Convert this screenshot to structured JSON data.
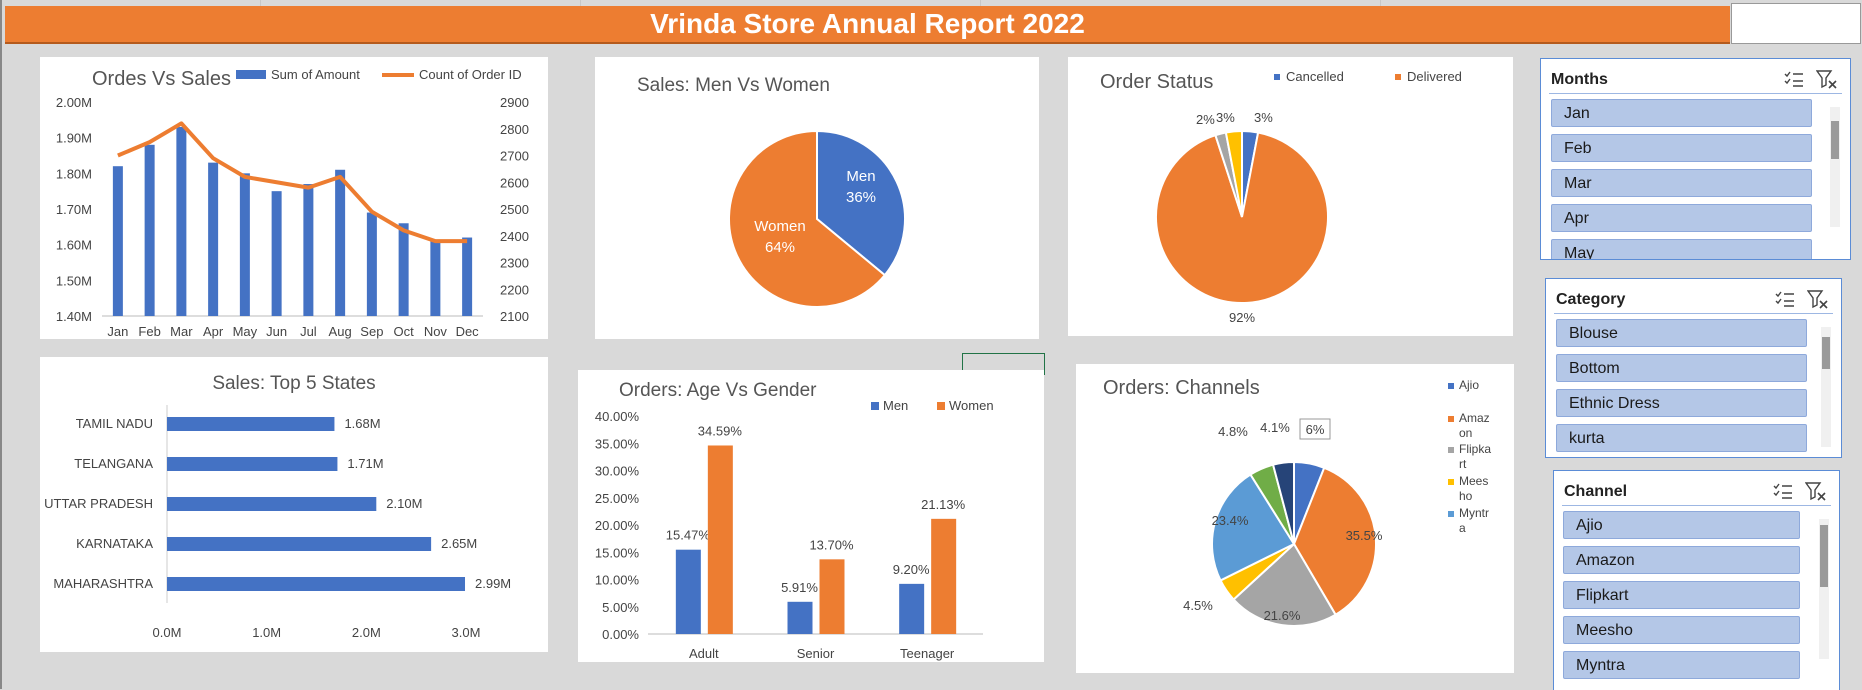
{
  "report": {
    "title": "Vrinda Store Annual Report 2022"
  },
  "colors": {
    "blue": "#4472c4",
    "orange": "#ed7d31",
    "gray": "#a5a5a5",
    "yellow": "#ffc000",
    "lightblue": "#5b9bd5",
    "green": "#70ad47",
    "navy": "#264478"
  },
  "chart_data": [
    {
      "type": "bar",
      "title": "Ordes Vs Sales",
      "categories": [
        "Jan",
        "Feb",
        "Mar",
        "Apr",
        "May",
        "Jun",
        "Jul",
        "Aug",
        "Sep",
        "Oct",
        "Nov",
        "Dec"
      ],
      "series": [
        {
          "name": "Sum of Amount",
          "type": "bar",
          "axis": "left",
          "values": [
            1.82,
            1.88,
            1.93,
            1.83,
            1.8,
            1.75,
            1.77,
            1.81,
            1.69,
            1.66,
            1.61,
            1.62
          ]
        },
        {
          "name": "Count of Order ID",
          "type": "line",
          "axis": "right",
          "values": [
            2700,
            2750,
            2820,
            2690,
            2620,
            2600,
            2580,
            2620,
            2490,
            2420,
            2380,
            2380
          ]
        }
      ],
      "y_left": {
        "ticks": [
          "2.00M",
          "1.90M",
          "1.80M",
          "1.70M",
          "1.60M",
          "1.50M",
          "1.40M"
        ],
        "ylim": [
          1.4,
          2.0
        ]
      },
      "y_right": {
        "ticks": [
          "2900",
          "2800",
          "2700",
          "2600",
          "2500",
          "2400",
          "2300",
          "2200",
          "2100"
        ],
        "ylim": [
          2100,
          2900
        ]
      },
      "legend": "top"
    },
    {
      "type": "pie",
      "title": "Sales: Men Vs Women",
      "slices": [
        {
          "label": "Men",
          "value": 36,
          "pct_label": "36%",
          "color": "#4472c4"
        },
        {
          "label": "Women",
          "value": 64,
          "pct_label": "64%",
          "color": "#ed7d31"
        }
      ]
    },
    {
      "type": "pie",
      "title": "Order Status",
      "legend": [
        "Cancelled",
        "Delivered"
      ],
      "slices": [
        {
          "label": "Cancelled",
          "value": 3,
          "pct_label": "3%",
          "color": "#4472c4"
        },
        {
          "label": "Delivered",
          "value": 92,
          "pct_label": "92%",
          "color": "#ed7d31"
        },
        {
          "label": "",
          "value": 2,
          "pct_label": "2%",
          "color": "#a5a5a5"
        },
        {
          "label": "",
          "value": 3,
          "pct_label": "3%",
          "color": "#ffc000"
        }
      ]
    },
    {
      "type": "bar",
      "orientation": "horizontal",
      "title": "Sales: Top 5 States",
      "categories": [
        "TAMIL NADU",
        "TELANGANA",
        "UTTAR PRADESH",
        "KARNATAKA",
        "MAHARASHTRA"
      ],
      "values": [
        1.68,
        1.71,
        2.1,
        2.65,
        2.99
      ],
      "value_labels": [
        "1.68M",
        "1.71M",
        "2.10M",
        "2.65M",
        "2.99M"
      ],
      "x_ticks": [
        "0.0M",
        "1.0M",
        "2.0M",
        "3.0M"
      ],
      "xlim": [
        0,
        3.0
      ]
    },
    {
      "type": "bar",
      "title": "Orders: Age Vs Gender",
      "categories": [
        "Adult",
        "Senior",
        "Teenager"
      ],
      "series": [
        {
          "name": "Men",
          "values": [
            15.47,
            5.91,
            9.2
          ],
          "labels": [
            "15.47%",
            "5.91%",
            "9.20%"
          ]
        },
        {
          "name": "Women",
          "values": [
            34.59,
            13.7,
            21.13
          ],
          "labels": [
            "34.59%",
            "13.70%",
            "21.13%"
          ]
        }
      ],
      "y_ticks": [
        "40.00%",
        "35.00%",
        "30.00%",
        "25.00%",
        "20.00%",
        "15.00%",
        "10.00%",
        "5.00%",
        "0.00%"
      ],
      "ylim": [
        0,
        40
      ],
      "legend": "top-right"
    },
    {
      "type": "pie",
      "title": "Orders: Channels",
      "slices": [
        {
          "label": "Ajio",
          "value": 6,
          "pct_label": "6%",
          "color": "#4472c4"
        },
        {
          "label": "Amazon",
          "value": 35.5,
          "pct_label": "35.5%",
          "color": "#ed7d31"
        },
        {
          "label": "Flipkart",
          "value": 21.6,
          "pct_label": "21.6%",
          "color": "#a5a5a5"
        },
        {
          "label": "Meesho",
          "value": 4.5,
          "pct_label": "4.5%",
          "color": "#ffc000"
        },
        {
          "label": "Myntra",
          "value": 23.4,
          "pct_label": "23.4%",
          "color": "#5b9bd5"
        },
        {
          "label": "",
          "value": 4.8,
          "pct_label": "4.8%",
          "color": "#70ad47"
        },
        {
          "label": "",
          "value": 4.1,
          "pct_label": "4.1%",
          "color": "#264478"
        }
      ],
      "legend_lines": [
        [
          "Ajio"
        ],
        [
          "Amaz",
          "on"
        ],
        [
          "Flipka",
          "rt"
        ],
        [
          "Mees",
          "ho"
        ],
        [
          "Myntr",
          "a"
        ]
      ]
    }
  ],
  "slicers": {
    "months": {
      "title": "Months",
      "items": [
        "Jan",
        "Feb",
        "Mar",
        "Apr",
        "May"
      ]
    },
    "category": {
      "title": "Category",
      "items": [
        "Blouse",
        "Bottom",
        "Ethnic Dress",
        "kurta"
      ]
    },
    "channel": {
      "title": "Channel",
      "items": [
        "Ajio",
        "Amazon",
        "Flipkart",
        "Meesho",
        "Myntra"
      ]
    }
  }
}
